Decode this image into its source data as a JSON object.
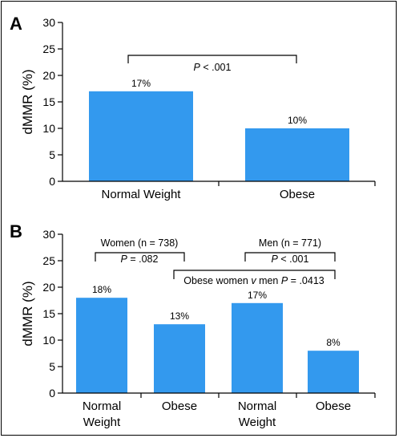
{
  "chart_data": [
    {
      "type": "bar",
      "panel": "A",
      "categories": [
        "Normal Weight",
        "Obese"
      ],
      "values": [
        17,
        10
      ],
      "data_labels": [
        "17%",
        "10%"
      ],
      "ylabel": "dMMR (%)",
      "ylim": [
        0,
        30
      ],
      "yticks": [
        0,
        5,
        10,
        15,
        20,
        25,
        30
      ],
      "bar_color": "#3399ee",
      "annotations": [
        {
          "text_parts": [
            "P",
            " < .001"
          ]
        }
      ]
    },
    {
      "type": "bar",
      "panel": "B",
      "categories": [
        "Normal\nWeight",
        "Obese",
        "Normal\nWeight",
        "Obese"
      ],
      "values": [
        18,
        13,
        17,
        8
      ],
      "data_labels": [
        "18%",
        "13%",
        "17%",
        "8%"
      ],
      "ylabel": "dMMR (%)",
      "ylim": [
        0,
        30
      ],
      "yticks": [
        0,
        5,
        10,
        15,
        20,
        25,
        30
      ],
      "bar_color": "#3399ee",
      "annotations": [
        {
          "label": "Women (n = 738)",
          "text_parts": [
            "P",
            " = .082"
          ]
        },
        {
          "label": "Men (n = 771)",
          "text_parts": [
            "P",
            " < .001"
          ]
        },
        {
          "text_parts": [
            "Obese women ",
            "v",
            " men ",
            "P",
            " = .0413"
          ]
        }
      ]
    }
  ]
}
